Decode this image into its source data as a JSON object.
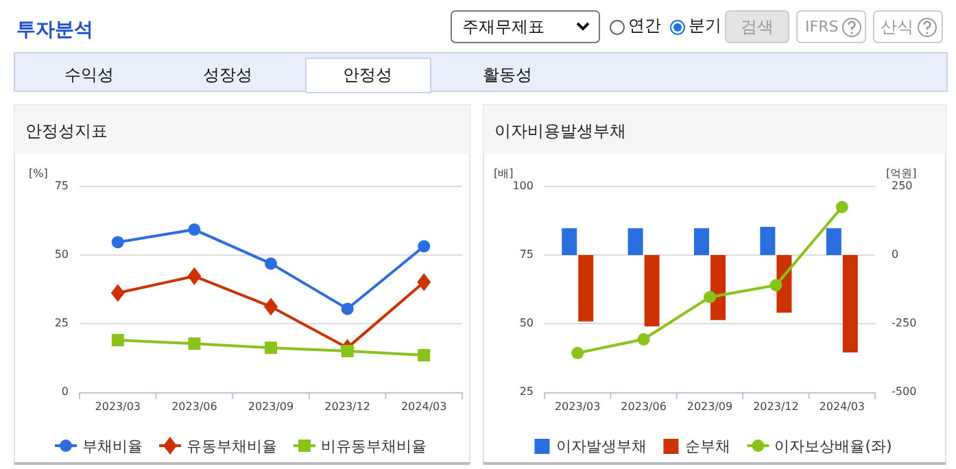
{
  "chart_data": [
    {
      "type": "other",
      "title": "투자분석",
      "annotations": [
        "주재무제표",
        "연간",
        "분기",
        "검색",
        "IFRS",
        "산식",
        "수익성",
        "성장성",
        "안정성",
        "활동성"
      ]
    },
    {
      "type": "line",
      "title": "안정성지표",
      "ylabel": "[%]",
      "categories": [
        "2023/03",
        "2023/06",
        "2023/09",
        "2023/12",
        "2024/03"
      ],
      "ylim": [
        0,
        75
      ],
      "yticks": [
        0,
        25,
        50,
        75
      ],
      "grid": "y",
      "legend": "bottom",
      "series": [
        {
          "name": "부채비율",
          "color": "#2b6ee0",
          "marker": "circle",
          "values": [
            54.7,
            59.3,
            46.9,
            30.4,
            53.2
          ]
        },
        {
          "name": "유동부채비율",
          "color": "#cc3300",
          "marker": "diamond",
          "values": [
            36.2,
            42.3,
            31.2,
            16.2,
            40.1
          ]
        },
        {
          "name": "비유동부채비율",
          "color": "#8ac31c",
          "marker": "square",
          "values": [
            19.0,
            17.7,
            16.2,
            15.0,
            13.5
          ]
        }
      ]
    },
    {
      "type": "bar",
      "title": "이자비용발생부채",
      "ylabel": "[배]",
      "y2label": "[억원]",
      "categories": [
        "2023/03",
        "2023/06",
        "2023/09",
        "2023/12",
        "2024/03"
      ],
      "ylim": [
        25,
        100
      ],
      "yticks": [
        25,
        50,
        75,
        100
      ],
      "y2lim": [
        -500,
        250
      ],
      "y2ticks": [
        -500,
        -250,
        0,
        250
      ],
      "grid": "y",
      "legend": "bottom",
      "series": [
        {
          "name": "이자발생부채",
          "color": "#2b6ee0",
          "axis": "y2",
          "values": [
            98,
            98,
            98,
            103,
            98
          ]
        },
        {
          "name": "순부채",
          "color": "#cc3300",
          "axis": "y2",
          "values": [
            -242,
            -260,
            -237,
            -210,
            -355
          ]
        },
        {
          "name": "이자보상배율(좌)",
          "type": "line",
          "color": "#8ac31c",
          "marker": "circle",
          "values": [
            39.3,
            44.3,
            59.7,
            64.0,
            92.5
          ]
        }
      ]
    }
  ]
}
